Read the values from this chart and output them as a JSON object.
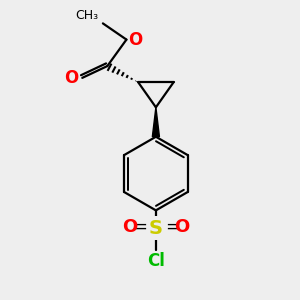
{
  "background_color": "#eeeeee",
  "bond_color": "#000000",
  "oxygen_color": "#ff0000",
  "sulfur_color": "#cccc00",
  "chlorine_color": "#00bb00",
  "fig_size": [
    3.0,
    3.0
  ],
  "dpi": 100,
  "xlim": [
    0,
    10
  ],
  "ylim": [
    0,
    10
  ]
}
